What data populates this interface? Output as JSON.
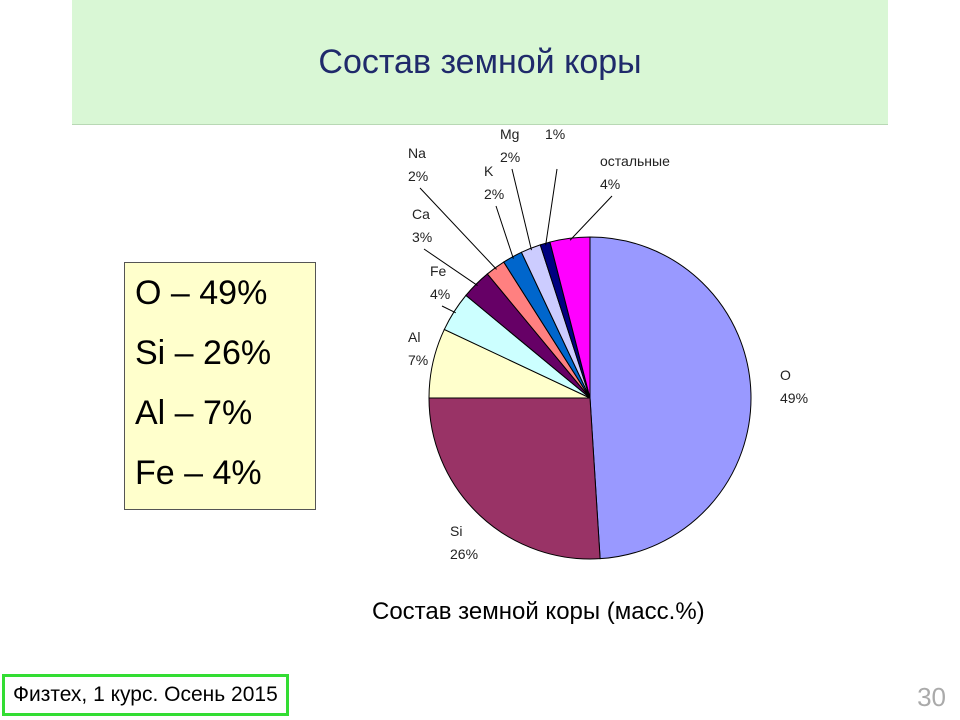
{
  "slide": {
    "title": "Состав земной коры",
    "footer": "Физтех, 1 курс. Осень 2015",
    "page_number": "30"
  },
  "summary": {
    "items": [
      "O – 49%",
      "Si – 26%",
      "Al – 7%",
      "Fe – 4%"
    ]
  },
  "chart_data": {
    "type": "pie",
    "title": "Состав земной коры (масс.%)",
    "categories": [
      "O",
      "Si",
      "Al",
      "Fe",
      "Ca",
      "Na",
      "K",
      "Mg",
      null,
      "остальные"
    ],
    "values": [
      49,
      26,
      7,
      4,
      3,
      2,
      2,
      2,
      1,
      4
    ],
    "value_labels": [
      "49%",
      "26%",
      "7%",
      "4%",
      "3%",
      "2%",
      "2%",
      "2%",
      "1%",
      "4%"
    ],
    "colors": [
      "#9999ff",
      "#993366",
      "#ffffcc",
      "#ccffff",
      "#660066",
      "#ff8080",
      "#0066cc",
      "#ccccff",
      "#000080",
      "#ff00ff"
    ]
  }
}
